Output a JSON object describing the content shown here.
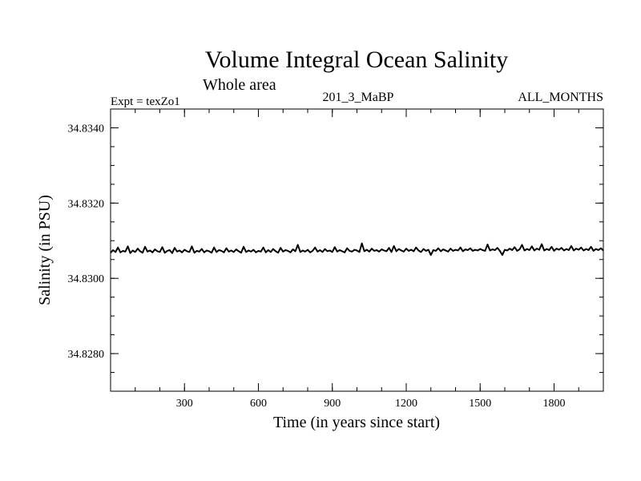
{
  "chart_data": {
    "type": "line",
    "title": "Volume Integral Ocean Salinity",
    "subtitle": "Whole area",
    "header_left": "Expt = texZo1",
    "header_center": "201_3_MaBP",
    "header_right": "ALL_MONTHS",
    "xlabel": "Time (in years since start)",
    "ylabel": "Salinity (in PSU)",
    "xlim": [
      0,
      2000
    ],
    "ylim": [
      34.827,
      34.8345
    ],
    "x_major_ticks": [
      300,
      600,
      900,
      1200,
      1500,
      1800
    ],
    "x_tick_labels": [
      "300",
      "600",
      "900",
      "1200",
      "1500",
      "1800"
    ],
    "y_major_ticks": [
      34.828,
      34.83,
      34.832,
      34.834
    ],
    "y_tick_labels": [
      "34.8280",
      "34.8300",
      "34.8320",
      "34.8340"
    ],
    "grid": false,
    "series": [
      {
        "name": "Salinity",
        "x_start": 0,
        "x_end": 2000,
        "x_step": 10,
        "values": [
          34.83068,
          34.83075,
          34.8307,
          34.83082,
          34.83069,
          34.83073,
          34.83071,
          34.83085,
          34.83067,
          34.83074,
          34.8307,
          34.83079,
          34.83072,
          34.83068,
          34.83084,
          34.83071,
          34.83074,
          34.83069,
          34.83077,
          34.83072,
          34.8307,
          34.83083,
          34.83068,
          34.83073,
          34.83075,
          34.83067,
          34.83081,
          34.83071,
          34.83074,
          34.83069,
          34.83076,
          34.83072,
          34.8307,
          34.83085,
          34.83068,
          34.83073,
          34.83071,
          34.83078,
          34.83069,
          34.83074,
          34.83072,
          34.83068,
          34.83082,
          34.8307,
          34.83075,
          34.83073,
          34.83069,
          34.8308,
          34.83071,
          34.83074,
          34.8307,
          34.83077,
          34.83072,
          34.83068,
          34.83084,
          34.8307,
          34.83074,
          34.83071,
          34.83076,
          34.83069,
          34.83073,
          34.83071,
          34.83082,
          34.83069,
          34.83075,
          34.8307,
          34.83078,
          34.83072,
          34.83068,
          34.83081,
          34.83071,
          34.83075,
          34.83073,
          34.83069,
          34.83077,
          34.83072,
          34.83089,
          34.8307,
          34.83074,
          34.83071,
          34.83076,
          34.83069,
          34.83073,
          34.83082,
          34.83071,
          34.83075,
          34.8307,
          34.83078,
          34.83072,
          34.83074,
          34.8307,
          34.83083,
          34.83071,
          34.83075,
          34.83072,
          34.83069,
          34.8308,
          34.83073,
          34.83071,
          34.83076,
          34.83074,
          34.8307,
          34.83093,
          34.83072,
          34.83076,
          34.83071,
          34.83079,
          34.83073,
          34.83075,
          34.83071,
          34.83077,
          34.83074,
          34.83072,
          34.83081,
          34.8307,
          34.83086,
          34.83072,
          34.83078,
          34.83074,
          34.83071,
          34.83079,
          34.83073,
          34.83076,
          34.83072,
          34.83082,
          34.83074,
          34.8307,
          34.83078,
          34.83073,
          34.83076,
          34.83062,
          34.83075,
          34.83073,
          34.8308,
          34.83072,
          34.83077,
          34.83074,
          34.83071,
          34.83079,
          34.83073,
          34.83076,
          34.83074,
          34.83082,
          34.83072,
          34.83077,
          34.83075,
          34.8308,
          34.83073,
          34.83076,
          34.83074,
          34.83078,
          34.83075,
          34.83073,
          34.8309,
          34.83074,
          34.83077,
          34.83075,
          34.83081,
          34.83073,
          34.83062,
          34.83076,
          34.83074,
          34.83079,
          34.83075,
          34.83083,
          34.83073,
          34.83077,
          34.83089,
          34.83074,
          34.83078,
          34.83075,
          34.83085,
          34.83074,
          34.83079,
          34.83076,
          34.83091,
          34.83074,
          34.83078,
          34.83075,
          34.83084,
          34.83073,
          34.83079,
          34.83076,
          34.83081,
          34.83074,
          34.83078,
          34.83075,
          34.83086,
          34.83074,
          34.83079,
          34.83076,
          34.83082,
          34.83074,
          34.83078,
          34.83075,
          34.83084,
          34.83073,
          34.83078,
          34.83075,
          34.8308,
          34.83074
        ]
      }
    ]
  }
}
